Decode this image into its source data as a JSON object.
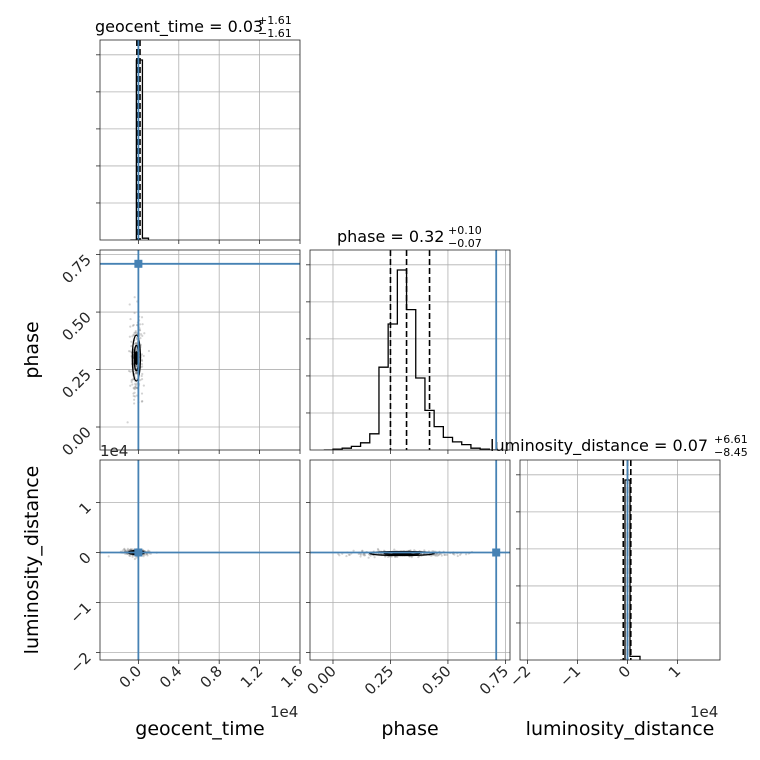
{
  "chart_data": {
    "type": "corner",
    "parameters": [
      "geocent_time",
      "phase",
      "luminosity_distance"
    ],
    "offset_labels": {
      "geocent_time": "1e4",
      "luminosity_distance": "1e4"
    },
    "titles": [
      {
        "param": "geocent_time",
        "text": "geocent_time = 0.03",
        "plus": "+1.61",
        "minus": "−1.61"
      },
      {
        "param": "phase",
        "text": "phase = 0.32",
        "plus": "+0.10",
        "minus": "−0.07"
      },
      {
        "param": "luminosity_distance",
        "text": "luminosity_distance = 0.07",
        "plus": "+6.61",
        "minus": "−8.45"
      }
    ],
    "axes": {
      "geocent_time": {
        "label": "geocent_time",
        "range": [
          -0.38,
          1.6
        ],
        "ticks": [
          0.0,
          0.4,
          0.8,
          1.2,
          1.6
        ],
        "tick_labels": [
          "0.0",
          "0.4",
          "0.8",
          "1.2",
          "1.6"
        ],
        "unit_scale": "1e4"
      },
      "phase": {
        "label": "phase",
        "range": [
          -0.1,
          0.77
        ],
        "ticks": [
          0.0,
          0.25,
          0.5,
          0.75
        ],
        "tick_labels": [
          "0.00",
          "0.25",
          "0.50",
          "0.75"
        ]
      },
      "luminosity_distance": {
        "label": "luminosity_distance",
        "range": [
          -2.15,
          1.85
        ],
        "ticks": [
          -2,
          -1,
          0,
          1
        ],
        "tick_labels": [
          "−2",
          "−1",
          "0",
          "1"
        ],
        "unit_scale": "1e4"
      }
    },
    "truths": {
      "geocent_time": 0.0,
      "phase": 0.71,
      "luminosity_distance": 0.0
    },
    "quantiles": {
      "geocent_time": [
        -0.015,
        0.0,
        0.016
      ],
      "phase": [
        0.25,
        0.32,
        0.42
      ],
      "luminosity_distance": [
        -0.0845,
        0.0007,
        0.0661
      ]
    },
    "histograms": {
      "geocent_time": {
        "edges": [
          -0.08,
          -0.02,
          0.04,
          0.1
        ],
        "counts": [
          0.0,
          1.0,
          0.01
        ]
      },
      "phase": {
        "edges": [
          -0.04,
          0.0,
          0.04,
          0.08,
          0.12,
          0.16,
          0.2,
          0.24,
          0.28,
          0.32,
          0.36,
          0.4,
          0.44,
          0.48,
          0.52,
          0.56,
          0.6,
          0.64,
          0.68,
          0.72
        ],
        "counts": [
          0.0,
          0.005,
          0.01,
          0.02,
          0.04,
          0.09,
          0.46,
          0.7,
          1.0,
          0.78,
          0.4,
          0.22,
          0.13,
          0.07,
          0.045,
          0.03,
          0.01,
          0.005,
          0.0
        ]
      },
      "luminosity_distance": {
        "edges": [
          -0.15,
          -0.05,
          0.05,
          0.25
        ],
        "counts": [
          0.0,
          1.0,
          0.02
        ]
      }
    },
    "contours_2d": [
      {
        "x": "geocent_time",
        "y": "phase",
        "center": [
          -0.02,
          0.3
        ],
        "sd": [
          0.02,
          0.05
        ]
      },
      {
        "x": "geocent_time",
        "y": "luminosity_distance",
        "center": [
          -0.02,
          0.0
        ],
        "sd": [
          0.04,
          0.02
        ]
      },
      {
        "x": "phase",
        "y": "luminosity_distance",
        "center": [
          0.3,
          -0.02
        ],
        "sd": [
          0.07,
          0.02
        ]
      }
    ],
    "grid": true,
    "colors": {
      "truth": "#4682b4",
      "hist": "#000000",
      "points": "#808080"
    }
  }
}
